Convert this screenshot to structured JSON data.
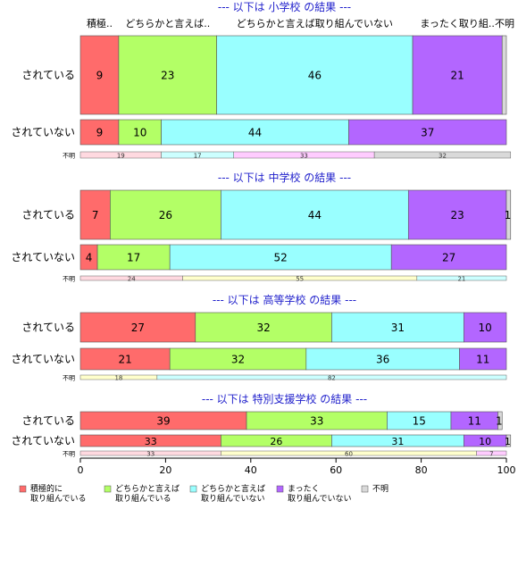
{
  "chart_data": {
    "type": "bar",
    "orientation": "horizontal",
    "stacked": true,
    "xlim": [
      0,
      100
    ],
    "x_ticks": [
      "0",
      "20",
      "40",
      "60",
      "80",
      "100"
    ],
    "grid": false,
    "legend_position": "bottom-left",
    "column_labels": [
      "積極..",
      "どちらかと言えば..",
      "どちらかと言えば取り組んでいない",
      "まったく取り組..",
      "不明"
    ],
    "categories": [
      {
        "name": "積極的に\n取り組んでいる",
        "color": "#ff6b6b"
      },
      {
        "name": "どちらかと言えば\n取り組んでいる",
        "color": "#b3ff66"
      },
      {
        "name": "どちらかと言えば\n取り組んでいない",
        "color": "#99ffff"
      },
      {
        "name": "まったく\n取り組んでいない",
        "color": "#b366ff"
      },
      {
        "name": "不明",
        "color": "#d9d9d9"
      }
    ],
    "unknown_colors": [
      "#ffd9e0",
      "#ffffcc",
      "#ccffff",
      "#ffccff",
      "#d9d9d9"
    ],
    "panels": [
      {
        "title": "--- 以下は 小学校 の結果 ---",
        "show_column_labels": true,
        "rows": [
          {
            "label": "されている",
            "values": [
              9,
              23,
              46,
              21,
              1
            ],
            "labels": [
              "9",
              "23",
              "46",
              "21",
              ""
            ]
          },
          {
            "label": "されていない",
            "values": [
              9,
              10,
              44,
              37,
              0
            ],
            "labels": [
              "9",
              "10",
              "44",
              "37",
              ""
            ]
          }
        ],
        "unknown_label": "不明",
        "unknown_values": [
          19,
          17,
          33,
          32
        ],
        "unknown_segment_colors": [
          "#ffd9e0",
          "#ccffff",
          "#ffccff",
          "#d9d9d9"
        ]
      },
      {
        "title": "--- 以下は 中学校 の結果 ---",
        "show_column_labels": false,
        "rows": [
          {
            "label": "されている",
            "values": [
              7,
              26,
              44,
              23,
              1
            ],
            "labels": [
              "7",
              "26",
              "44",
              "23",
              "1"
            ]
          },
          {
            "label": "されていない",
            "values": [
              4,
              17,
              52,
              27,
              0
            ],
            "labels": [
              "4",
              "17",
              "52",
              "27",
              ""
            ]
          }
        ],
        "unknown_label": "不明",
        "unknown_values": [
          24,
          55,
          21
        ],
        "unknown_segment_colors": [
          "#ffd9e0",
          "#ffffcc",
          "#ccffff"
        ]
      },
      {
        "title": "--- 以下は 高等学校 の結果 ---",
        "show_column_labels": false,
        "rows": [
          {
            "label": "されている",
            "values": [
              27,
              32,
              31,
              10,
              0
            ],
            "labels": [
              "27",
              "32",
              "31",
              "10",
              ""
            ]
          },
          {
            "label": "されていない",
            "values": [
              21,
              32,
              36,
              11,
              0
            ],
            "labels": [
              "21",
              "32",
              "36",
              "11",
              ""
            ]
          }
        ],
        "unknown_label": "不明",
        "unknown_values": [
          18,
          82
        ],
        "unknown_segment_colors": [
          "#ffffcc",
          "#ccffff"
        ]
      },
      {
        "title": "--- 以下は 特別支援学校 の結果 ---",
        "show_column_labels": false,
        "rows": [
          {
            "label": "されている",
            "values": [
              39,
              33,
              15,
              11,
              1
            ],
            "labels": [
              "39",
              "33",
              "15",
              "11",
              "1"
            ]
          },
          {
            "label": "されていない",
            "values": [
              33,
              26,
              31,
              10,
              1
            ],
            "labels": [
              "33",
              "26",
              "31",
              "10",
              "1"
            ]
          }
        ],
        "unknown_label": "不明",
        "unknown_values": [
          33,
          60,
          7
        ],
        "unknown_segment_colors": [
          "#ffd9e0",
          "#ffffcc",
          "#ffccff"
        ]
      }
    ]
  }
}
